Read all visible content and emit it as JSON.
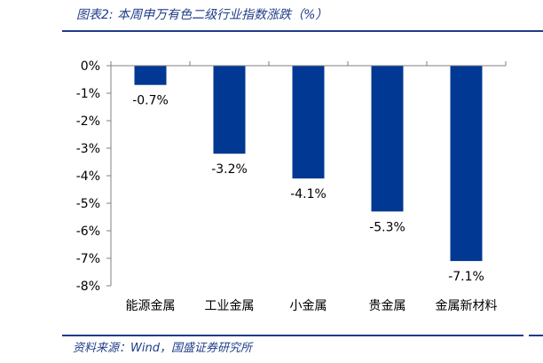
{
  "header": {
    "caption": "图表2:  本周申万有色二级行业指数涨跌（%）"
  },
  "footer": {
    "source": "资料来源：Wind，国盛证券研究所"
  },
  "colors": {
    "bar": "#003893",
    "rule": "#1f3c88",
    "axis": "#808080"
  },
  "chart_data": {
    "type": "bar",
    "categories": [
      "能源金属",
      "工业金属",
      "小金属",
      "贵金属",
      "金属新材料"
    ],
    "values": [
      -0.7,
      -3.2,
      -4.1,
      -5.3,
      -7.1
    ],
    "data_labels": [
      "-0.7%",
      "-3.2%",
      "-4.1%",
      "-5.3%",
      "-7.1%"
    ],
    "ylim": [
      -8,
      0
    ],
    "yticks": [
      0,
      -1,
      -2,
      -3,
      -4,
      -5,
      -6,
      -7,
      -8
    ],
    "ytick_labels": [
      "0%",
      "-1%",
      "-2%",
      "-3%",
      "-4%",
      "-5%",
      "-6%",
      "-7%",
      "-8%"
    ],
    "grid": false,
    "legend": "none"
  }
}
